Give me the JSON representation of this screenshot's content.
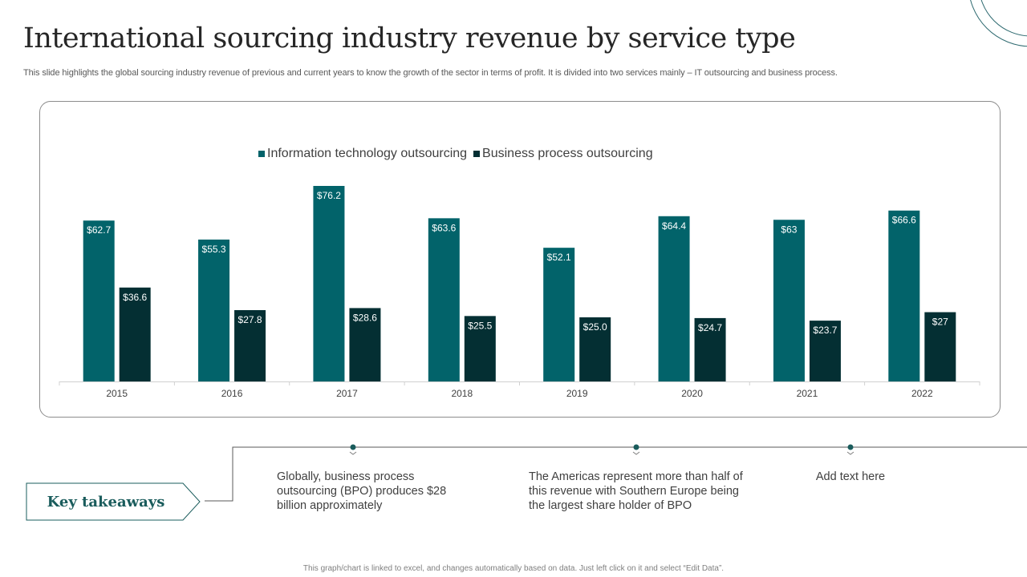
{
  "slide": {
    "title": "International sourcing industry revenue by service type",
    "subtitle": "This slide highlights the global sourcing industry revenue of previous and current years  to know the growth of the sector in terms of profit. It is divided into two services mainly – IT outsourcing and business process.",
    "footer": "This graph/chart is linked to excel, and changes automatically based on data. Just left click on it and select “Edit Data”."
  },
  "colors": {
    "it_series": "#02636a",
    "bpo_series": "#042f33",
    "accent": "#1a5c5c",
    "decor": "#2e6a70"
  },
  "chart_data": {
    "type": "bar",
    "title": "",
    "xlabel": "",
    "ylabel": "",
    "ylim": [
      0,
      80
    ],
    "grid": false,
    "legend_position": "top-center",
    "categories": [
      "2015",
      "2016",
      "2017",
      "2018",
      "2019",
      "2020",
      "2021",
      "2022"
    ],
    "series": [
      {
        "name": "Information technology outsourcing",
        "values": [
          62.7,
          55.3,
          76.2,
          63.6,
          52.1,
          64.4,
          63,
          66.6
        ],
        "labels": [
          "$62.7",
          "$55.3",
          "$76.2",
          "$63.6",
          "$52.1",
          "$64.4",
          "$63",
          "$66.6"
        ]
      },
      {
        "name": "Business process outsourcing",
        "values": [
          36.6,
          27.8,
          28.6,
          25.5,
          25.0,
          24.7,
          23.7,
          27
        ],
        "labels": [
          "$36.6",
          "$27.8",
          "$28.6",
          "$25.5",
          "$25.0",
          "$24.7",
          "$23.7",
          "$27"
        ]
      }
    ]
  },
  "takeaways": {
    "heading": "Key takeaways",
    "items": [
      "Globally,  business process outsourcing (BPO) produces $28 billion  approximately",
      "The Americas represent more than half of this revenue with Southern Europe being the largest  share holder of BPO",
      "Add text here"
    ]
  }
}
